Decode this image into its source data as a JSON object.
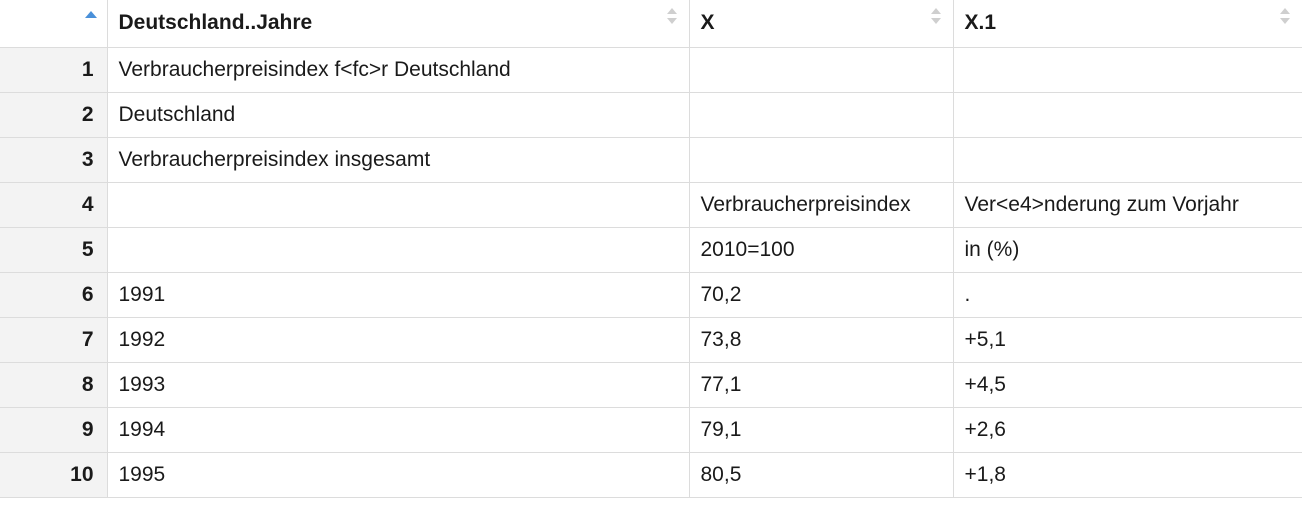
{
  "columns": [
    "Deutschland..Jahre",
    "X",
    "X.1"
  ],
  "rows": [
    {
      "n": "1",
      "c1": "Verbraucherpreisindex f<fc>r Deutschland",
      "c2": "",
      "c3": ""
    },
    {
      "n": "2",
      "c1": "Deutschland",
      "c2": "",
      "c3": ""
    },
    {
      "n": "3",
      "c1": "Verbraucherpreisindex insgesamt",
      "c2": "",
      "c3": ""
    },
    {
      "n": "4",
      "c1": "",
      "c2": "Verbraucherpreisindex",
      "c3": "Ver<e4>nderung zum Vorjahr"
    },
    {
      "n": "5",
      "c1": "",
      "c2": "2010=100",
      "c3": "in (%)"
    },
    {
      "n": "6",
      "c1": "1991",
      "c2": "70,2",
      "c3": "."
    },
    {
      "n": "7",
      "c1": "1992",
      "c2": "73,8",
      "c3": "+5,1"
    },
    {
      "n": "8",
      "c1": "1993",
      "c2": "77,1",
      "c3": "+4,5"
    },
    {
      "n": "9",
      "c1": "1994",
      "c2": "79,1",
      "c3": "+2,6"
    },
    {
      "n": "10",
      "c1": "1995",
      "c2": "80,5",
      "c3": "+1,8"
    }
  ],
  "colors": {
    "sort_active": "#4a90d9",
    "rownum_bg": "#f3f3f3",
    "border": "#dcdcdc"
  }
}
